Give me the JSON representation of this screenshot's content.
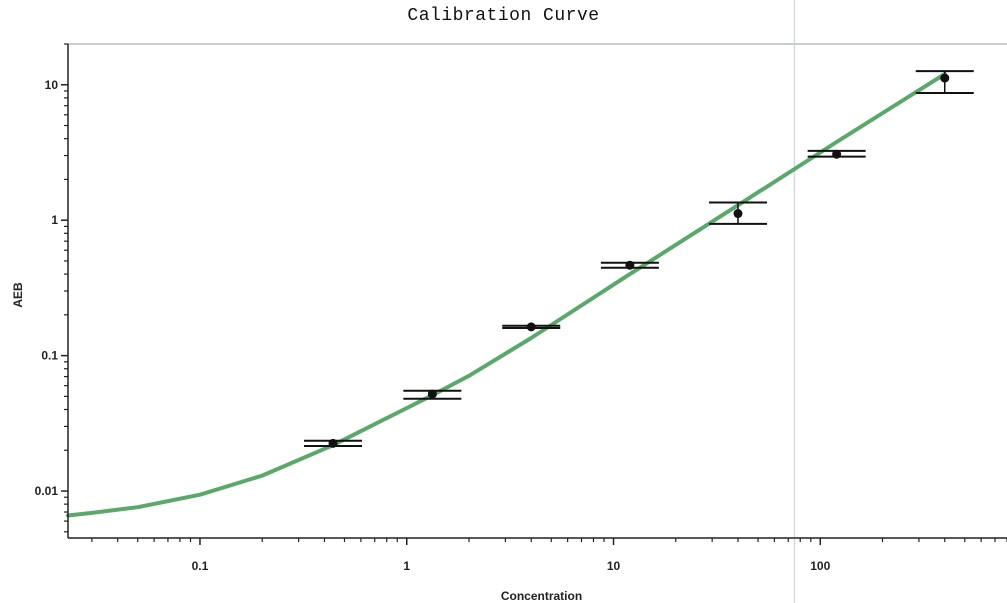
{
  "chart_data": {
    "type": "scatter",
    "title": "Calibration Curve",
    "xlabel": "Concentration",
    "ylabel": "AEB",
    "x_scale": "log",
    "y_scale": "log",
    "xlim": [
      0.023,
      800
    ],
    "ylim": [
      0.0045,
      20
    ],
    "x_ticks": [
      {
        "value": 0.1,
        "label": "0.1"
      },
      {
        "value": 1,
        "label": "1"
      },
      {
        "value": 10,
        "label": "10"
      },
      {
        "value": 100,
        "label": "100"
      }
    ],
    "y_ticks": [
      {
        "value": 0.01,
        "label": "0.01"
      },
      {
        "value": 0.1,
        "label": "0.1"
      },
      {
        "value": 1,
        "label": "1"
      },
      {
        "value": 10,
        "label": "10"
      }
    ],
    "reference_line_x": 75,
    "points": [
      {
        "x": 0.44,
        "y": 0.0225,
        "ylow": 0.0215,
        "yhigh": 0.0235
      },
      {
        "x": 1.33,
        "y": 0.052,
        "ylow": 0.048,
        "yhigh": 0.055
      },
      {
        "x": 4.0,
        "y": 0.163,
        "ylow": 0.16,
        "yhigh": 0.166
      },
      {
        "x": 12.0,
        "y": 0.465,
        "ylow": 0.445,
        "yhigh": 0.485
      },
      {
        "x": 40.0,
        "y": 1.12,
        "ylow": 0.94,
        "yhigh": 1.35
      },
      {
        "x": 120.0,
        "y": 3.07,
        "ylow": 2.95,
        "yhigh": 3.25
      },
      {
        "x": 400.0,
        "y": 11.2,
        "ylow": 8.7,
        "yhigh": 12.6
      }
    ],
    "fit_curve": {
      "x": [
        0.023,
        0.03,
        0.05,
        0.1,
        0.2,
        0.44,
        1,
        1.33,
        2,
        4,
        12,
        40,
        120,
        400
      ],
      "y": [
        0.0066,
        0.0069,
        0.0076,
        0.0094,
        0.013,
        0.0218,
        0.041,
        0.051,
        0.071,
        0.135,
        0.4,
        1.29,
        3.78,
        12.0
      ]
    },
    "colors": {
      "fit_line": "#5aa86a",
      "points": "#111111",
      "frame": "#c8cdd4",
      "reference_line": "#d6dadf"
    },
    "grid": false
  }
}
